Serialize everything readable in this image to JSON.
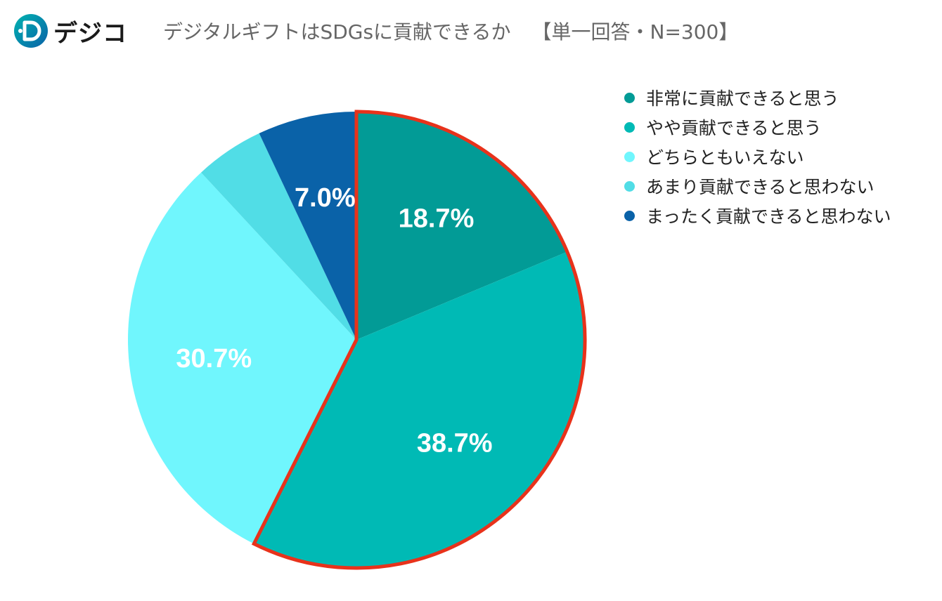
{
  "brand": {
    "name": "デジコ",
    "logo_letter": "D"
  },
  "title": "デジタルギフトはSDGsに貢献できるか",
  "subtitle": "【単一回答・N=300】",
  "chart_data": {
    "type": "pie",
    "start_angle_deg": 0,
    "direction": "clockwise",
    "slices": [
      {
        "label": "非常に貢献できると思う",
        "value": 18.7,
        "display": "18.7%",
        "color": "#029B96",
        "highlight": true
      },
      {
        "label": "やや貢献できると思う",
        "value": 38.7,
        "display": "38.7%",
        "color": "#00BAB5",
        "highlight": true
      },
      {
        "label": "どちらともいえない",
        "value": 30.7,
        "display": "30.7%",
        "color": "#70F6FD",
        "highlight": false
      },
      {
        "label": "あまり貢献できると思わない",
        "value": 4.9,
        "display": "",
        "color": "#51DDE6",
        "highlight": false
      },
      {
        "label": "まったく貢献できると思わない",
        "value": 7.0,
        "display": "7.0%",
        "color": "#0A62A8",
        "highlight": false
      }
    ],
    "highlight_color": "#E8321B",
    "label_color": "#FFFFFF",
    "legend_position": "top-right"
  }
}
